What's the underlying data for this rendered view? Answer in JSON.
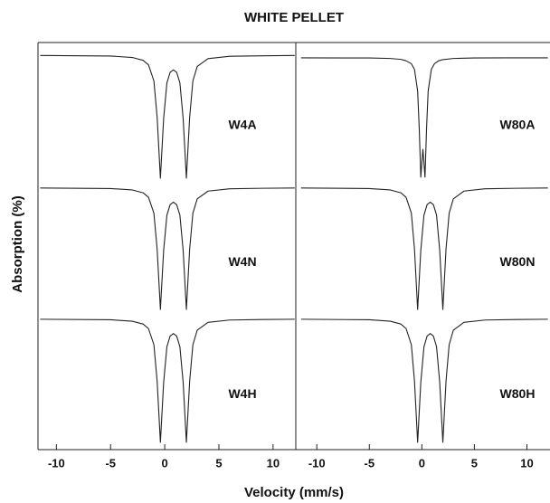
{
  "figure": {
    "title": "WHITE PELLET",
    "x_label": "Velocity (mm/s)",
    "y_label": "Absorption (%)"
  },
  "chart_data": [
    {
      "type": "line",
      "label": "W4A",
      "color": "#222222",
      "xlim": [
        -11.7,
        12.1
      ],
      "ylim": [
        -10,
        1
      ],
      "x": [
        -11.5,
        -5,
        -3,
        -2,
        -1.5,
        -1,
        -0.7,
        -0.4,
        -0.1,
        0.2,
        0.5,
        0.8,
        1.1,
        1.4,
        1.7,
        2.0,
        2.3,
        2.6,
        3,
        4,
        6,
        9,
        12
      ],
      "values": [
        0,
        -0.04,
        -0.15,
        -0.37,
        -0.72,
        -1.95,
        -4.76,
        -9.44,
        -4.84,
        -2.11,
        -1.29,
        -1.1,
        -1.29,
        -2.11,
        -4.84,
        -9.44,
        -4.76,
        -1.95,
        -0.84,
        -0.24,
        -0.06,
        -0.02,
        0
      ]
    },
    {
      "type": "line",
      "label": "W80A",
      "color": "#222222",
      "xlim": [
        -12,
        12.2
      ],
      "ylim": [
        -10,
        1.2
      ],
      "x": [
        -11.5,
        -5,
        -3,
        -2,
        -1.5,
        -1,
        -0.7,
        -0.4,
        -0.25,
        -0.1,
        0,
        0.1,
        0.2,
        0.3,
        0.45,
        0.6,
        0.9,
        1.2,
        1.6,
        2,
        3,
        5,
        8,
        12
      ],
      "values": [
        0,
        -0.01,
        -0.05,
        -0.12,
        -0.23,
        -0.46,
        -0.91,
        -2.61,
        -5.5,
        -9.35,
        -8.22,
        -7.17,
        -8.22,
        -9.35,
        -5.5,
        -2.61,
        -0.91,
        -0.46,
        -0.23,
        -0.14,
        -0.05,
        -0.01,
        0,
        0
      ]
    },
    {
      "type": "line",
      "label": "W4N",
      "color": "#222222",
      "xlim": [
        -11.7,
        12.1
      ],
      "ylim": [
        -10,
        0.2
      ],
      "x": [
        -11.5,
        -5,
        -3,
        -2,
        -1.5,
        -1,
        -0.7,
        -0.4,
        -0.1,
        0.2,
        0.5,
        0.8,
        1.1,
        1.4,
        1.7,
        2.0,
        2.3,
        2.6,
        3,
        4,
        6,
        9,
        12
      ],
      "values": [
        0,
        -0.04,
        -0.15,
        -0.37,
        -0.72,
        -1.95,
        -4.76,
        -9.44,
        -4.84,
        -2.11,
        -1.29,
        -1.1,
        -1.29,
        -2.11,
        -4.84,
        -9.44,
        -4.76,
        -1.95,
        -0.84,
        -0.24,
        -0.06,
        -0.02,
        0
      ]
    },
    {
      "type": "line",
      "label": "W80N",
      "color": "#222222",
      "xlim": [
        -12,
        12.2
      ],
      "ylim": [
        -10,
        0.2
      ],
      "x": [
        -11.5,
        -5,
        -3,
        -2,
        -1.5,
        -1,
        -0.7,
        -0.4,
        -0.1,
        0.2,
        0.5,
        0.8,
        1.1,
        1.4,
        1.7,
        2.0,
        2.3,
        2.6,
        3,
        4,
        6,
        9,
        12
      ],
      "values": [
        0,
        -0.04,
        -0.15,
        -0.37,
        -0.72,
        -1.95,
        -4.76,
        -9.44,
        -4.84,
        -2.11,
        -1.29,
        -1.1,
        -1.29,
        -2.11,
        -4.84,
        -9.44,
        -4.76,
        -1.95,
        -0.84,
        -0.24,
        -0.06,
        -0.02,
        0
      ]
    },
    {
      "type": "line",
      "label": "W4H",
      "color": "#222222",
      "xlim": [
        -11.7,
        12.1
      ],
      "ylim": [
        -10,
        0.2
      ],
      "xticks": [
        -10,
        -5,
        0,
        5,
        10
      ],
      "x": [
        -11.5,
        -5,
        -3,
        -2,
        -1.5,
        -1,
        -0.7,
        -0.4,
        -0.1,
        0.2,
        0.5,
        0.8,
        1.1,
        1.4,
        1.7,
        2.0,
        2.3,
        2.6,
        3,
        4,
        6,
        9,
        12
      ],
      "values": [
        0,
        -0.04,
        -0.15,
        -0.37,
        -0.72,
        -1.95,
        -4.76,
        -9.44,
        -4.84,
        -2.11,
        -1.29,
        -1.1,
        -1.29,
        -2.11,
        -4.84,
        -9.44,
        -4.76,
        -1.95,
        -0.84,
        -0.24,
        -0.06,
        -0.02,
        0
      ]
    },
    {
      "type": "line",
      "label": "W80H",
      "color": "#222222",
      "xlim": [
        -12,
        12.2
      ],
      "ylim": [
        -10,
        0.2
      ],
      "xticks": [
        -10,
        -5,
        0,
        5,
        10
      ],
      "x": [
        -11.5,
        -5,
        -3,
        -2,
        -1.5,
        -1,
        -0.7,
        -0.4,
        -0.1,
        0.2,
        0.5,
        0.8,
        1.1,
        1.4,
        1.7,
        2.0,
        2.3,
        2.6,
        3,
        4,
        6,
        9,
        12
      ],
      "values": [
        0,
        -0.04,
        -0.15,
        -0.37,
        -0.72,
        -1.95,
        -4.76,
        -9.44,
        -4.84,
        -2.11,
        -1.29,
        -1.1,
        -1.29,
        -2.11,
        -4.84,
        -9.44,
        -4.76,
        -1.95,
        -0.84,
        -0.24,
        -0.06,
        -0.02,
        0
      ]
    }
  ]
}
